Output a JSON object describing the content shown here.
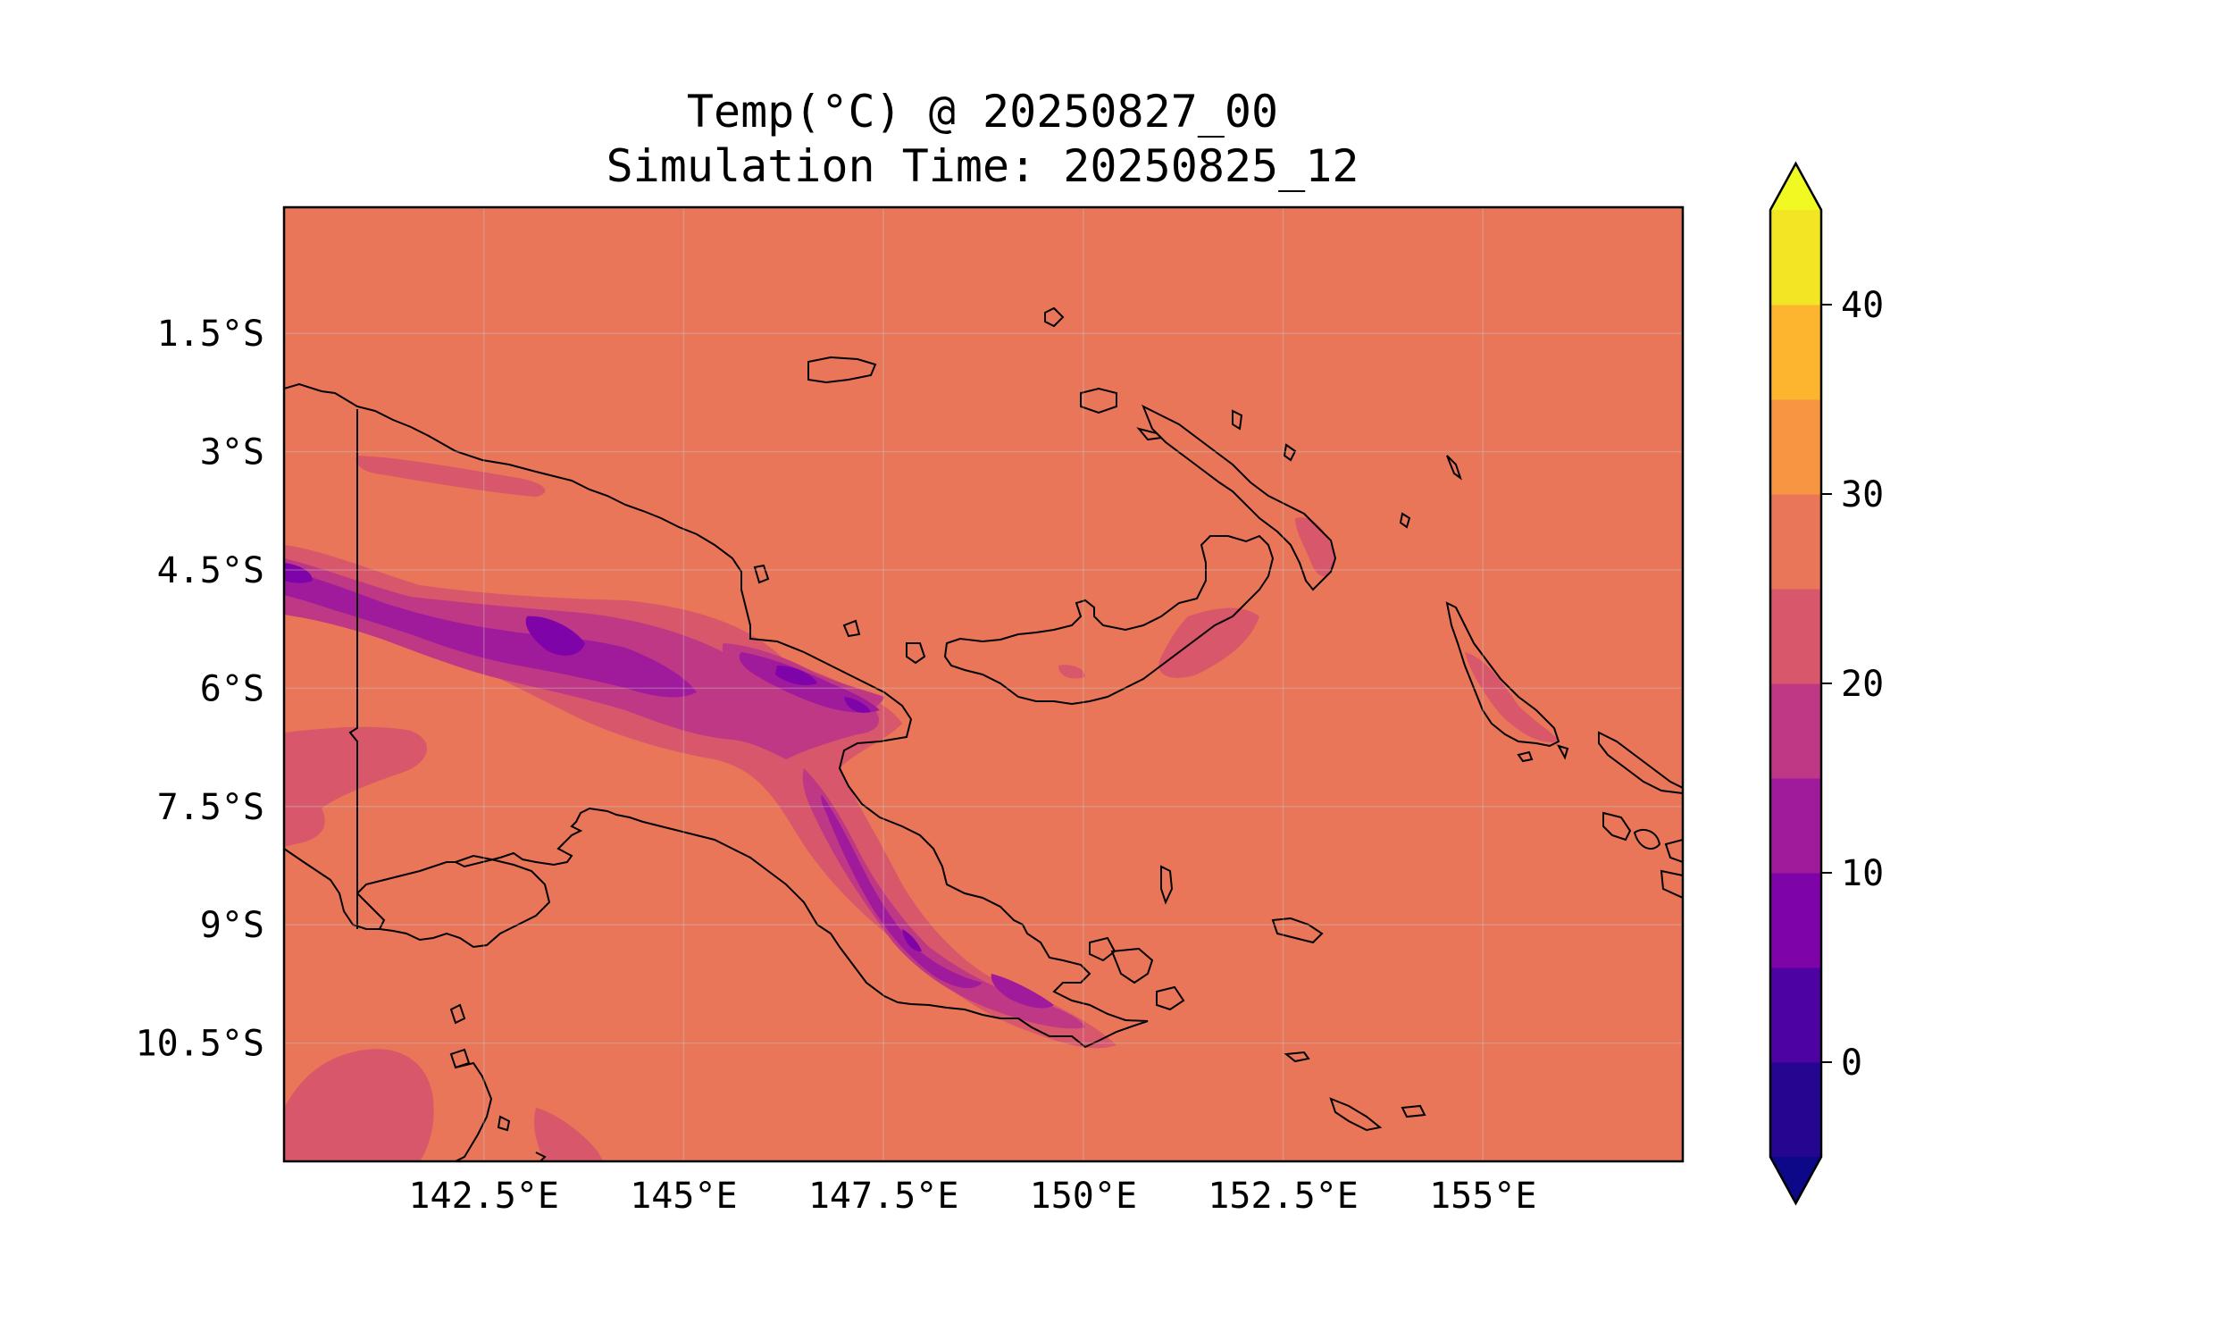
{
  "title": {
    "line1": "Temp(°C) @ 20250827_00",
    "line2": "Simulation Time: 20250825_12"
  },
  "chart_data": {
    "type": "heatmap",
    "variable": "Temp(°C)",
    "x_ticks": [
      {
        "value": 142.5,
        "label": "142.5°E"
      },
      {
        "value": 145,
        "label": "145°E"
      },
      {
        "value": 147.5,
        "label": "147.5°E"
      },
      {
        "value": 150,
        "label": "150°E"
      },
      {
        "value": 152.5,
        "label": "152.5°E"
      },
      {
        "value": 155,
        "label": "155°E"
      }
    ],
    "y_ticks": [
      {
        "value": -1.5,
        "label": "1.5°S"
      },
      {
        "value": -3,
        "label": "3°S"
      },
      {
        "value": -4.5,
        "label": "4.5°S"
      },
      {
        "value": -6,
        "label": "6°S"
      },
      {
        "value": -7.5,
        "label": "7.5°S"
      },
      {
        "value": -9,
        "label": "9°S"
      },
      {
        "value": -10.5,
        "label": "10.5°S"
      }
    ],
    "xlim": [
      140,
      157.5
    ],
    "ylim": [
      -12,
      0.1
    ],
    "grid": true,
    "background_level_color": "#e97658",
    "colorbar": {
      "levels": [
        -5,
        0,
        5,
        10,
        15,
        20,
        25,
        30,
        35,
        40,
        45
      ],
      "colors": [
        "#240691",
        "#4d02a2",
        "#7e03a8",
        "#a01a9c",
        "#be3885",
        "#d8576b",
        "#e97658",
        "#f89540",
        "#fdb42f",
        "#f1e524"
      ],
      "extend_min_color": "#0d0887",
      "extend_max_color": "#f0f921",
      "ticks": [
        {
          "value": 0,
          "label": "0"
        },
        {
          "value": 10,
          "label": "10"
        },
        {
          "value": 20,
          "label": "20"
        },
        {
          "value": 30,
          "label": "30"
        },
        {
          "value": 40,
          "label": "40"
        }
      ]
    }
  }
}
